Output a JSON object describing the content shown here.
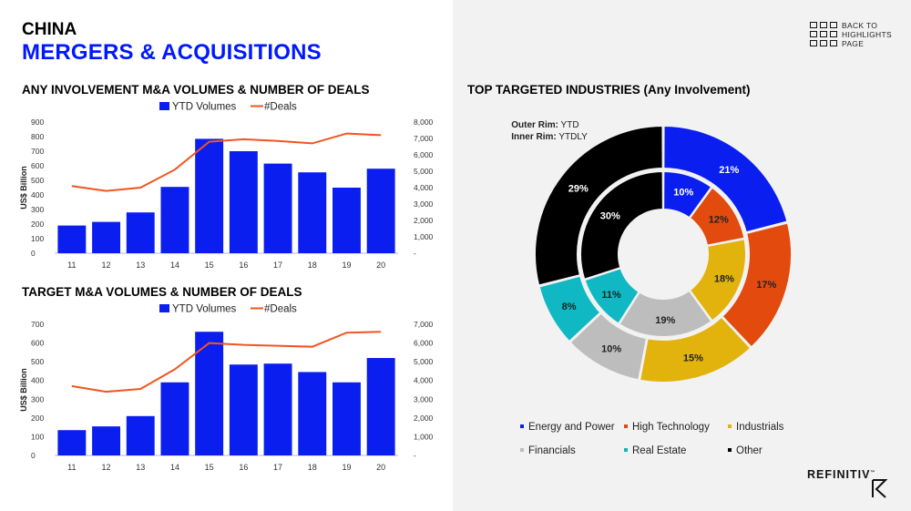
{
  "header": {
    "country": "CHINA",
    "title": "MERGERS & ACQUISITIONS"
  },
  "nav": {
    "label": "BACK TO HIGHLIGHTS PAGE"
  },
  "brand": {
    "name": "REFINITIV",
    "tm": "™"
  },
  "colors": {
    "bar": "#0a1ef0",
    "line": "#f0551e",
    "energy": "#0a1ef0",
    "hightech": "#e24a0e",
    "industrials": "#e2b30c",
    "financials": "#bdbdbd",
    "realestate": "#0fb8c2",
    "other": "#000000"
  },
  "chart_data": [
    {
      "type": "bar",
      "title": "ANY INVOLVEMENT M&A VOLUMES & NUMBER OF DEALS",
      "ylabel": "US$ Billion",
      "categories": [
        "11",
        "12",
        "13",
        "14",
        "15",
        "16",
        "17",
        "18",
        "19",
        "20"
      ],
      "ylim": [
        0,
        900
      ],
      "yticks": [
        "0",
        "100",
        "200",
        "300",
        "400",
        "500",
        "600",
        "700",
        "800",
        "900"
      ],
      "y2lim": [
        0,
        8000
      ],
      "y2ticks": [
        "-",
        "1,000",
        "2,000",
        "3,000",
        "4,000",
        "5,000",
        "6,000",
        "7,000",
        "8,000"
      ],
      "series": [
        {
          "name": "YTD Volumes",
          "kind": "bar",
          "axis": "left",
          "values": [
            190,
            215,
            280,
            455,
            785,
            700,
            615,
            555,
            450,
            580
          ]
        },
        {
          "name": "#Deals",
          "kind": "line",
          "axis": "right",
          "values": [
            4100,
            3800,
            4000,
            5100,
            6800,
            6950,
            6850,
            6700,
            7300,
            7200
          ]
        }
      ],
      "legend": "top"
    },
    {
      "type": "bar",
      "title": "TARGET M&A VOLUMES & NUMBER OF DEALS",
      "ylabel": "US$ Billion",
      "categories": [
        "11",
        "12",
        "13",
        "14",
        "15",
        "16",
        "17",
        "18",
        "19",
        "20"
      ],
      "ylim": [
        0,
        700
      ],
      "yticks": [
        "0",
        "100",
        "200",
        "300",
        "400",
        "500",
        "600",
        "700"
      ],
      "y2lim": [
        0,
        7000
      ],
      "y2ticks": [
        "-",
        "1,000",
        "2,000",
        "3,000",
        "4,000",
        "5,000",
        "6,000",
        "7,000"
      ],
      "series": [
        {
          "name": "YTD Volumes",
          "kind": "bar",
          "axis": "left",
          "values": [
            135,
            155,
            210,
            390,
            660,
            485,
            490,
            445,
            390,
            520
          ]
        },
        {
          "name": "#Deals",
          "kind": "line",
          "axis": "right",
          "values": [
            3700,
            3400,
            3550,
            4600,
            6000,
            5900,
            5850,
            5800,
            6550,
            6600
          ]
        }
      ],
      "legend": "top"
    },
    {
      "type": "pie",
      "title": "TOP TARGETED INDUSTRIES  (Any Involvement)",
      "notes": [
        {
          "bold": "Outer Rim:",
          "text": " YTD"
        },
        {
          "bold": "Inner Rim:",
          "text": " YTDLY"
        }
      ],
      "categories": [
        "Energy and Power",
        "High Technology",
        "Industrials",
        "Financials",
        "Real Estate",
        "Other"
      ],
      "outer": [
        21,
        17,
        15,
        10,
        8,
        29
      ],
      "inner": [
        10,
        12,
        18,
        19,
        11,
        30
      ],
      "labels_outer": [
        "21%",
        "17%",
        "15%",
        "10%",
        "8%",
        "29%"
      ],
      "labels_inner": [
        "10%",
        "12%",
        "18%",
        "19%",
        "11%",
        "30%"
      ],
      "legend": "bottom"
    }
  ]
}
